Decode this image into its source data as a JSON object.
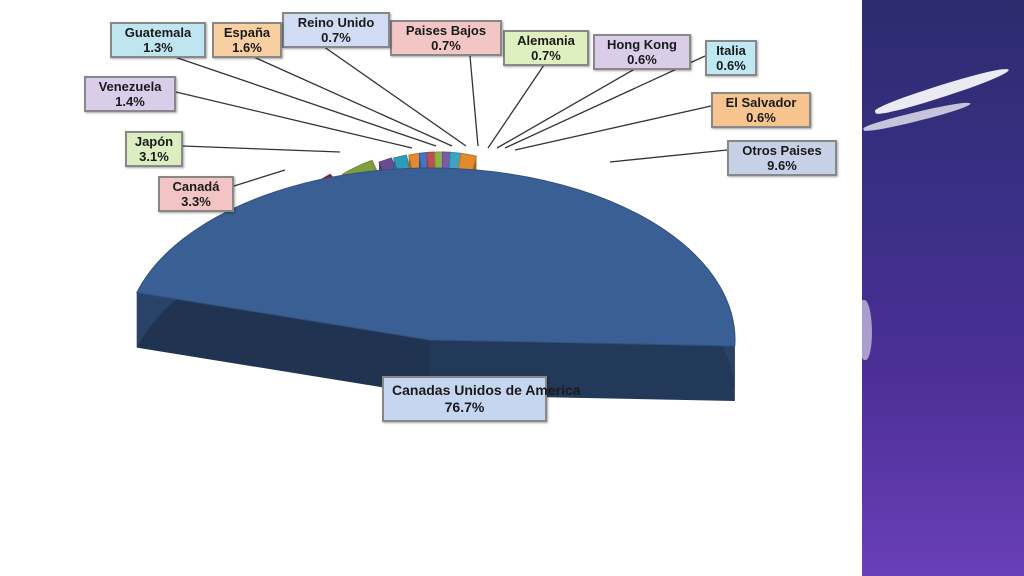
{
  "chart_data": {
    "type": "pie",
    "style": "3d-exploded",
    "slices": [
      {
        "label": "Canadas Unidos de America",
        "value": 76.7,
        "value_label": "76.7%",
        "color": "#3a5f94",
        "box_color": "#c6d6f0"
      },
      {
        "label": "Otros Paises",
        "value": 9.6,
        "value_label": "9.6%",
        "color": "#aab6cf",
        "box_color": "#c6d0e6"
      },
      {
        "label": "El Salvador",
        "value": 0.6,
        "value_label": "0.6%",
        "color": "#e38a2f",
        "box_color": "#f6c58f"
      },
      {
        "label": "Italia",
        "value": 0.6,
        "value_label": "0.6%",
        "color": "#3aa6c2",
        "box_color": "#bfe8f3"
      },
      {
        "label": "Hong Kong",
        "value": 0.6,
        "value_label": "0.6%",
        "color": "#7b5aa6",
        "box_color": "#d9cdea"
      },
      {
        "label": "Alemania",
        "value": 0.7,
        "value_label": "0.7%",
        "color": "#8fb04a",
        "box_color": "#dff0c0"
      },
      {
        "label": "Paises Bajos",
        "value": 0.7,
        "value_label": "0.7%",
        "color": "#c0504d",
        "box_color": "#f2c6c5"
      },
      {
        "label": "Reino Unido",
        "value": 0.7,
        "value_label": "0.7%",
        "color": "#4472c4",
        "box_color": "#cfdcf3"
      },
      {
        "label": "España",
        "value": 1.6,
        "value_label": "1.6%",
        "color": "#e38a2f",
        "box_color": "#f8cfa0"
      },
      {
        "label": "Guatemala",
        "value": 1.3,
        "value_label": "1.3%",
        "color": "#2e9bb8",
        "box_color": "#bfe6f0"
      },
      {
        "label": "Venezuela",
        "value": 1.4,
        "value_label": "1.4%",
        "color": "#6a4c96",
        "box_color": "#d9cdea"
      },
      {
        "label": "Japón",
        "value": 3.1,
        "value_label": "3.1%",
        "color": "#7f9f3f",
        "box_color": "#dceec0"
      },
      {
        "label": "Canadá",
        "value": 3.3,
        "value_label": "3.3%",
        "color": "#8b2a2a",
        "box_color": "#f2c4c4"
      }
    ],
    "title": ""
  }
}
